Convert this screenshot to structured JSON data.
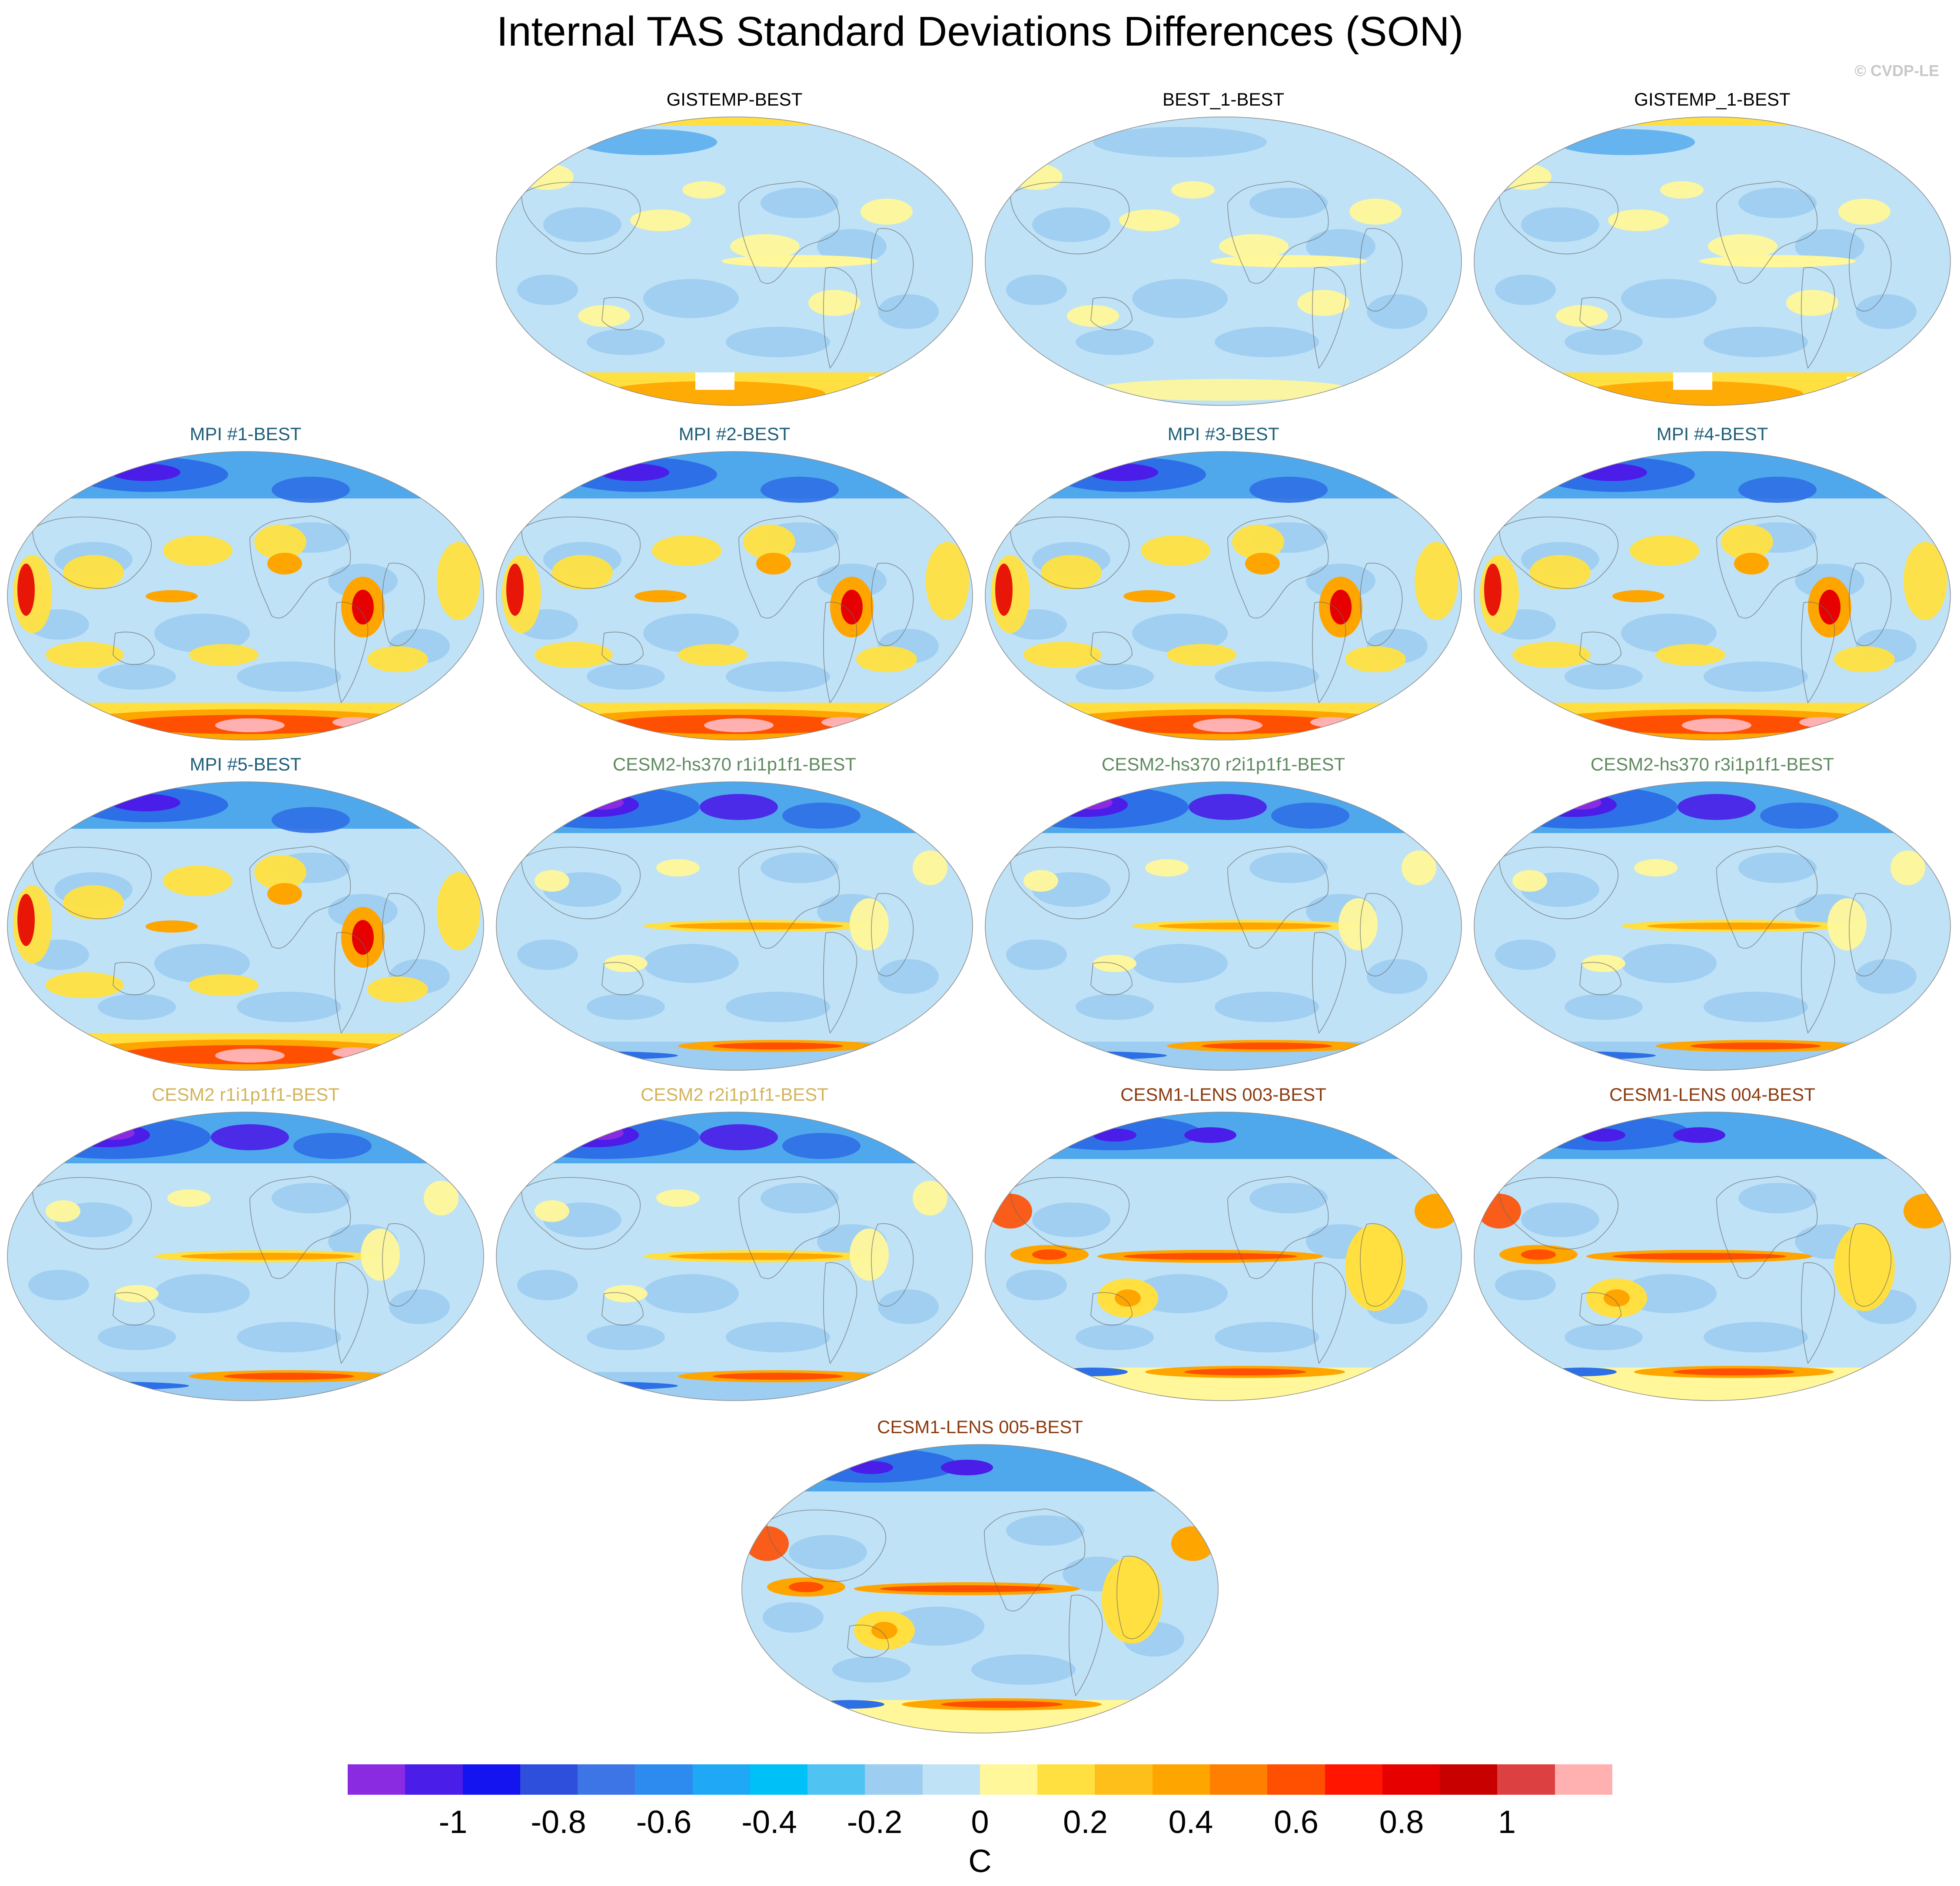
{
  "figure": {
    "title": "Internal TAS Standard Deviations Differences (SON)",
    "credit": "© CVDP-LE"
  },
  "panels": [
    {
      "label": "GISTEMP-BEST",
      "color": "#000000",
      "pattern": "obs"
    },
    {
      "label": "BEST_1-BEST",
      "color": "#000000",
      "pattern": "obs_mild"
    },
    {
      "label": "GISTEMP_1-BEST",
      "color": "#000000",
      "pattern": "obs"
    },
    {
      "label": "MPI #1-BEST",
      "color": "#1f5f7a",
      "pattern": "mpi"
    },
    {
      "label": "MPI #2-BEST",
      "color": "#1f5f7a",
      "pattern": "mpi"
    },
    {
      "label": "MPI #3-BEST",
      "color": "#1f5f7a",
      "pattern": "mpi"
    },
    {
      "label": "MPI #4-BEST",
      "color": "#1f5f7a",
      "pattern": "mpi"
    },
    {
      "label": "MPI #5-BEST",
      "color": "#1f5f7a",
      "pattern": "mpi"
    },
    {
      "label": "CESM2-hs370 r1i1p1f1-BEST",
      "color": "#5f8a5f",
      "pattern": "cesm2"
    },
    {
      "label": "CESM2-hs370 r2i1p1f1-BEST",
      "color": "#5f8a5f",
      "pattern": "cesm2"
    },
    {
      "label": "CESM2-hs370 r3i1p1f1-BEST",
      "color": "#5f8a5f",
      "pattern": "cesm2"
    },
    {
      "label": "CESM2 r1i1p1f1-BEST",
      "color": "#d2b45a",
      "pattern": "cesm2"
    },
    {
      "label": "CESM2 r2i1p1f1-BEST",
      "color": "#d2b45a",
      "pattern": "cesm2"
    },
    {
      "label": "CESM1-LENS 003-BEST",
      "color": "#8b3a0f",
      "pattern": "cesm1"
    },
    {
      "label": "CESM1-LENS 004-BEST",
      "color": "#8b3a0f",
      "pattern": "cesm1"
    },
    {
      "label": "CESM1-LENS 005-BEST",
      "color": "#8b3a0f",
      "pattern": "cesm1"
    }
  ],
  "legend": {
    "unit": "C",
    "colors": [
      "#8a2be2",
      "#4b1de8",
      "#1414f0",
      "#2e4fdb",
      "#3d74e6",
      "#2d8bf0",
      "#1fa8f5",
      "#00c0f8",
      "#4fc3f2",
      "#9dcdf0",
      "#bfe2f7",
      "#fff799",
      "#ffe040",
      "#ffbf1a",
      "#ffa500",
      "#ff7f00",
      "#ff4f00",
      "#ff1500",
      "#e60000",
      "#c80000",
      "#dc4040",
      "#ffb0b0"
    ],
    "tick_labels": [
      "-1",
      "-0.8",
      "-0.6",
      "-0.4",
      "-0.2",
      "0",
      "0.2",
      "0.4",
      "0.6",
      "0.8",
      "1"
    ],
    "tick_values": [
      -1,
      -0.8,
      -0.6,
      -0.4,
      -0.2,
      0,
      0.2,
      0.4,
      0.6,
      0.8,
      1
    ],
    "range": [
      -1.2,
      1.2
    ]
  }
}
